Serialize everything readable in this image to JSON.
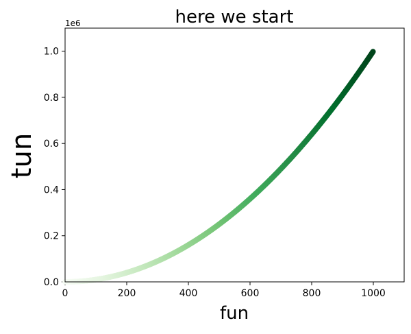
{
  "chart_data": {
    "type": "scatter",
    "title": "here we start",
    "xlabel": "fun",
    "ylabel": "tun",
    "y_offset_label": "1e6",
    "xlim": [
      0,
      1100
    ],
    "ylim": [
      0,
      1100000
    ],
    "x_ticks": [
      0,
      200,
      400,
      600,
      800,
      1000
    ],
    "x_tick_labels": [
      "0",
      "200",
      "400",
      "600",
      "800",
      "1000"
    ],
    "y_ticks": [
      0,
      200000,
      400000,
      600000,
      800000,
      1000000
    ],
    "y_tick_labels": [
      "0.0",
      "0.2",
      "0.4",
      "0.6",
      "0.8",
      "1.0"
    ],
    "grid": false,
    "colormap": "Greens",
    "colormap_stops": [
      "#f7fcf5",
      "#e5f5e0",
      "#c7e9c0",
      "#a1d99b",
      "#74c476",
      "#41ab5d",
      "#238b45",
      "#006d2c",
      "#00441b"
    ],
    "series": [
      {
        "x_start": 0,
        "x_end": 999,
        "x_step": 1,
        "y_formula": "x^2",
        "color_by": "x"
      }
    ]
  }
}
